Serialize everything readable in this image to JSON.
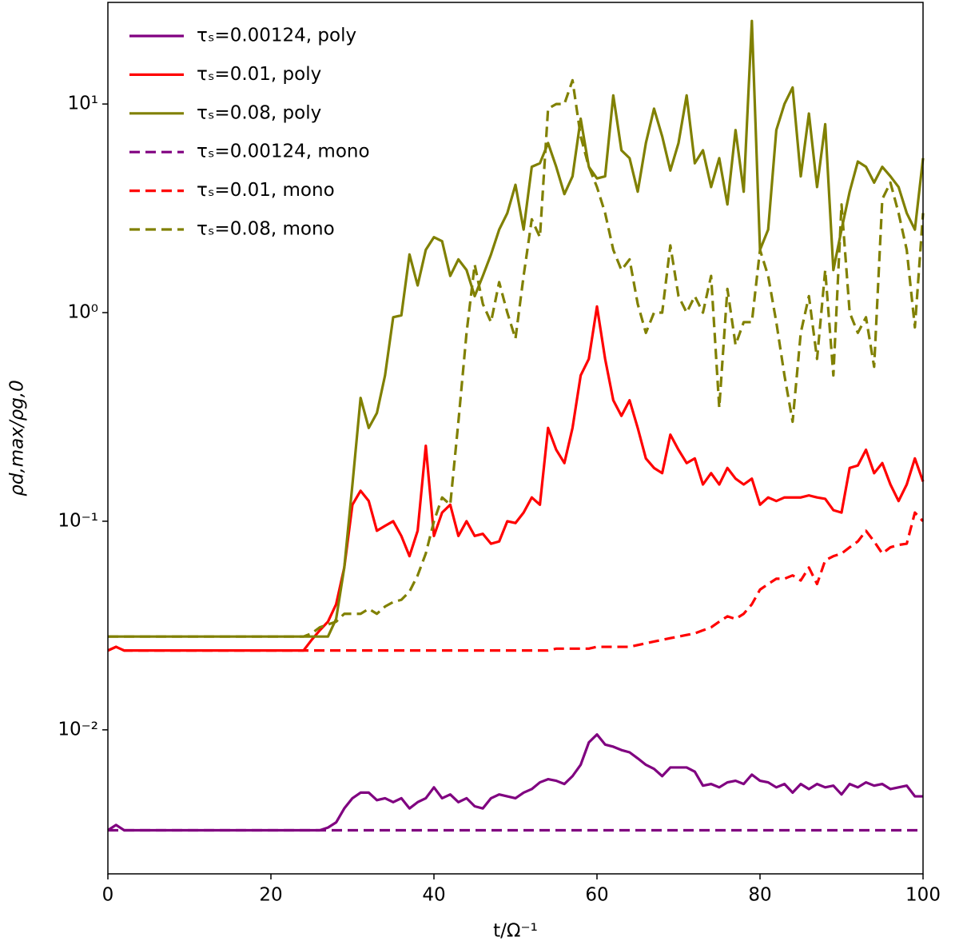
{
  "chart_data": {
    "type": "line",
    "x_label": "t/Ω⁻¹",
    "y_label": "ρd,max/ρg,0",
    "log_y": true,
    "legend": "upper left",
    "xlim": [
      0,
      100
    ],
    "xticks": [
      0,
      20,
      40,
      60,
      80,
      100
    ],
    "ylim": [
      0.00204,
      30.7
    ],
    "yticks": [
      {
        "value": 0.01,
        "label": "10⁻²"
      },
      {
        "value": 0.1,
        "label": "10⁻¹"
      },
      {
        "value": 1,
        "label": "10⁰"
      },
      {
        "value": 10,
        "label": "10¹"
      }
    ],
    "x": [
      0,
      1,
      2,
      3,
      4,
      5,
      6,
      7,
      8,
      9,
      10,
      11,
      12,
      13,
      14,
      15,
      16,
      17,
      18,
      19,
      20,
      21,
      22,
      23,
      24,
      25,
      26,
      27,
      28,
      29,
      30,
      31,
      32,
      33,
      34,
      35,
      36,
      37,
      38,
      39,
      40,
      41,
      42,
      43,
      44,
      45,
      46,
      47,
      48,
      49,
      50,
      51,
      52,
      53,
      54,
      55,
      56,
      57,
      58,
      59,
      60,
      61,
      62,
      63,
      64,
      65,
      66,
      67,
      68,
      69,
      70,
      71,
      72,
      73,
      74,
      75,
      76,
      77,
      78,
      79,
      80,
      81,
      82,
      83,
      84,
      85,
      86,
      87,
      88,
      89,
      90,
      91,
      92,
      93,
      94,
      95,
      96,
      97,
      98,
      99,
      100
    ],
    "series": [
      {
        "name": "τₛ=0.00124, poly",
        "color": "#800080",
        "linestyle": "solid",
        "values": [
          0.0033,
          0.0035,
          0.0033,
          0.0033,
          0.0033,
          0.0033,
          0.0033,
          0.0033,
          0.0033,
          0.0033,
          0.0033,
          0.0033,
          0.0033,
          0.0033,
          0.0033,
          0.0033,
          0.0033,
          0.0033,
          0.0033,
          0.0033,
          0.0033,
          0.0033,
          0.0033,
          0.0033,
          0.0033,
          0.0033,
          0.0033,
          0.0034,
          0.0036,
          0.0042,
          0.0047,
          0.005,
          0.005,
          0.0046,
          0.0047,
          0.0045,
          0.0047,
          0.0042,
          0.0045,
          0.0047,
          0.0053,
          0.0047,
          0.0049,
          0.0045,
          0.0047,
          0.0043,
          0.0042,
          0.0047,
          0.0049,
          0.0048,
          0.0047,
          0.005,
          0.0052,
          0.0056,
          0.0058,
          0.0057,
          0.0055,
          0.006,
          0.0068,
          0.0087,
          0.0095,
          0.0085,
          0.0083,
          0.008,
          0.0078,
          0.0073,
          0.0068,
          0.0065,
          0.006,
          0.0066,
          0.0066,
          0.0066,
          0.0063,
          0.0054,
          0.0055,
          0.0053,
          0.0056,
          0.0057,
          0.0055,
          0.0061,
          0.0057,
          0.0056,
          0.0053,
          0.0055,
          0.005,
          0.0055,
          0.0052,
          0.0055,
          0.0053,
          0.0054,
          0.0049,
          0.0055,
          0.0053,
          0.0056,
          0.0054,
          0.0055,
          0.0052,
          0.0053,
          0.0054,
          0.0048,
          0.0048
        ]
      },
      {
        "name": "τₛ=0.01, poly",
        "color": "#ff0000",
        "linestyle": "solid",
        "values": [
          0.024,
          0.025,
          0.024,
          0.024,
          0.024,
          0.024,
          0.024,
          0.024,
          0.024,
          0.024,
          0.024,
          0.024,
          0.024,
          0.024,
          0.024,
          0.024,
          0.024,
          0.024,
          0.024,
          0.024,
          0.024,
          0.024,
          0.024,
          0.024,
          0.024,
          0.027,
          0.03,
          0.033,
          0.04,
          0.06,
          0.12,
          0.14,
          0.125,
          0.09,
          0.095,
          0.1,
          0.085,
          0.068,
          0.09,
          0.23,
          0.085,
          0.11,
          0.12,
          0.085,
          0.1,
          0.085,
          0.087,
          0.078,
          0.08,
          0.1,
          0.098,
          0.11,
          0.13,
          0.12,
          0.28,
          0.22,
          0.19,
          0.28,
          0.5,
          0.6,
          1.07,
          0.6,
          0.38,
          0.32,
          0.38,
          0.28,
          0.2,
          0.18,
          0.17,
          0.26,
          0.22,
          0.19,
          0.2,
          0.15,
          0.17,
          0.15,
          0.18,
          0.16,
          0.15,
          0.16,
          0.12,
          0.13,
          0.125,
          0.13,
          0.13,
          0.13,
          0.133,
          0.13,
          0.128,
          0.113,
          0.11,
          0.18,
          0.185,
          0.22,
          0.17,
          0.19,
          0.15,
          0.125,
          0.15,
          0.2,
          0.155
        ]
      },
      {
        "name": "τₛ=0.08, poly",
        "color": "#808000",
        "linestyle": "solid",
        "values": [
          0.028,
          0.028,
          0.028,
          0.028,
          0.028,
          0.028,
          0.028,
          0.028,
          0.028,
          0.028,
          0.028,
          0.028,
          0.028,
          0.028,
          0.028,
          0.028,
          0.028,
          0.028,
          0.028,
          0.028,
          0.028,
          0.028,
          0.028,
          0.028,
          0.028,
          0.028,
          0.028,
          0.028,
          0.034,
          0.06,
          0.15,
          0.39,
          0.28,
          0.33,
          0.5,
          0.95,
          0.97,
          1.9,
          1.35,
          2.0,
          2.3,
          2.2,
          1.5,
          1.8,
          1.6,
          1.2,
          1.5,
          1.9,
          2.5,
          3.0,
          4.1,
          2.5,
          5.0,
          5.2,
          6.5,
          5.0,
          3.7,
          4.5,
          8.5,
          5.0,
          4.4,
          4.5,
          11,
          6.0,
          5.5,
          3.8,
          6.5,
          9.5,
          7.0,
          4.8,
          6.5,
          11,
          5.2,
          6.0,
          4.0,
          5.5,
          3.3,
          7.5,
          3.8,
          25,
          2.0,
          2.5,
          7.5,
          10,
          12,
          4.5,
          9.0,
          4.0,
          8.0,
          1.6,
          2.5,
          3.8,
          5.3,
          5.0,
          4.2,
          5.0,
          4.5,
          4.0,
          3.0,
          2.5,
          5.5
        ]
      },
      {
        "name": "τₛ=0.00124, mono",
        "color": "#800080",
        "linestyle": "dashed",
        "values": [
          0.0033,
          0.0033,
          0.0033,
          0.0033,
          0.0033,
          0.0033,
          0.0033,
          0.0033,
          0.0033,
          0.0033,
          0.0033,
          0.0033,
          0.0033,
          0.0033,
          0.0033,
          0.0033,
          0.0033,
          0.0033,
          0.0033,
          0.0033,
          0.0033,
          0.0033,
          0.0033,
          0.0033,
          0.0033,
          0.0033,
          0.0033,
          0.0033,
          0.0033,
          0.0033,
          0.0033,
          0.0033,
          0.0033,
          0.0033,
          0.0033,
          0.0033,
          0.0033,
          0.0033,
          0.0033,
          0.0033,
          0.0033,
          0.0033,
          0.0033,
          0.0033,
          0.0033,
          0.0033,
          0.0033,
          0.0033,
          0.0033,
          0.0033,
          0.0033,
          0.0033,
          0.0033,
          0.0033,
          0.0033,
          0.0033,
          0.0033,
          0.0033,
          0.0033,
          0.0033,
          0.0033,
          0.0033,
          0.0033,
          0.0033,
          0.0033,
          0.0033,
          0.0033,
          0.0033,
          0.0033,
          0.0033,
          0.0033,
          0.0033,
          0.0033,
          0.0033,
          0.0033,
          0.0033,
          0.0033,
          0.0033,
          0.0033,
          0.0033,
          0.0033,
          0.0033,
          0.0033,
          0.0033,
          0.0033,
          0.0033,
          0.0033,
          0.0033,
          0.0033,
          0.0033,
          0.0033,
          0.0033,
          0.0033,
          0.0033,
          0.0033,
          0.0033,
          0.0033,
          0.0033,
          0.0033,
          0.0033,
          0.0033
        ]
      },
      {
        "name": "τₛ=0.01, mono",
        "color": "#ff0000",
        "linestyle": "dashed",
        "values": [
          0.024,
          0.025,
          0.024,
          0.024,
          0.024,
          0.024,
          0.024,
          0.024,
          0.024,
          0.024,
          0.024,
          0.024,
          0.024,
          0.024,
          0.024,
          0.024,
          0.024,
          0.024,
          0.024,
          0.024,
          0.024,
          0.024,
          0.024,
          0.024,
          0.024,
          0.024,
          0.024,
          0.024,
          0.024,
          0.024,
          0.024,
          0.024,
          0.024,
          0.024,
          0.024,
          0.024,
          0.024,
          0.024,
          0.024,
          0.024,
          0.024,
          0.024,
          0.024,
          0.024,
          0.024,
          0.024,
          0.024,
          0.024,
          0.024,
          0.024,
          0.024,
          0.024,
          0.024,
          0.024,
          0.024,
          0.0245,
          0.0245,
          0.0245,
          0.0245,
          0.0245,
          0.025,
          0.025,
          0.025,
          0.025,
          0.025,
          0.0255,
          0.026,
          0.0265,
          0.027,
          0.0275,
          0.028,
          0.0285,
          0.029,
          0.03,
          0.031,
          0.033,
          0.035,
          0.034,
          0.036,
          0.04,
          0.047,
          0.05,
          0.053,
          0.053,
          0.055,
          0.052,
          0.06,
          0.05,
          0.065,
          0.068,
          0.07,
          0.075,
          0.08,
          0.09,
          0.08,
          0.07,
          0.075,
          0.077,
          0.078,
          0.11,
          0.1
        ]
      },
      {
        "name": "τₛ=0.08, mono",
        "color": "#808000",
        "linestyle": "dashed",
        "values": [
          0.028,
          0.028,
          0.028,
          0.028,
          0.028,
          0.028,
          0.028,
          0.028,
          0.028,
          0.028,
          0.028,
          0.028,
          0.028,
          0.028,
          0.028,
          0.028,
          0.028,
          0.028,
          0.028,
          0.028,
          0.028,
          0.028,
          0.028,
          0.028,
          0.028,
          0.029,
          0.031,
          0.032,
          0.033,
          0.036,
          0.036,
          0.036,
          0.038,
          0.036,
          0.039,
          0.041,
          0.042,
          0.046,
          0.055,
          0.07,
          0.1,
          0.13,
          0.12,
          0.3,
          0.8,
          1.7,
          1.1,
          0.9,
          1.4,
          1.0,
          0.75,
          1.5,
          2.8,
          2.3,
          9.5,
          10,
          10,
          13,
          7.0,
          5.0,
          4.0,
          3.0,
          2.0,
          1.6,
          1.8,
          1.1,
          0.8,
          1.0,
          1.0,
          2.1,
          1.2,
          1.0,
          1.2,
          1.0,
          1.5,
          0.35,
          1.3,
          0.7,
          0.9,
          0.9,
          2.0,
          1.5,
          0.9,
          0.5,
          0.3,
          0.8,
          1.2,
          0.6,
          1.6,
          0.5,
          3.3,
          1.0,
          0.8,
          0.95,
          0.55,
          3.5,
          4.2,
          3.0,
          2.0,
          0.85,
          3.0
        ]
      }
    ]
  }
}
